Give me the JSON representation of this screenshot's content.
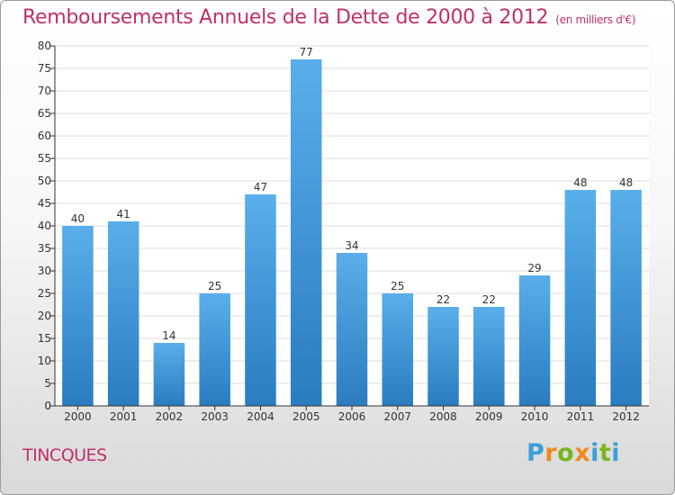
{
  "title": "Remboursements Annuels de la Dette de 2000 à 2012",
  "subtitle": "(en milliers d'€)",
  "commune": "TINCQUES",
  "logo": {
    "letters": [
      "P",
      "r",
      "o",
      "x",
      "i",
      "t",
      "i"
    ],
    "colors": [
      "#3aa0d8",
      "#f08a1c",
      "#7ab51d",
      "#f08a1c",
      "#3aa0d8",
      "#7ab51d",
      "#3aa0d8"
    ]
  },
  "colors": {
    "bar_light": "#5aaeea",
    "bar_dark": "#2a7cbf",
    "title": "#c0306a",
    "axis": "#333333",
    "grid": "#dcdcdc"
  },
  "chart_data": {
    "type": "bar",
    "categories": [
      "2000",
      "2001",
      "2002",
      "2003",
      "2004",
      "2005",
      "2006",
      "2007",
      "2008",
      "2009",
      "2010",
      "2011",
      "2012"
    ],
    "values": [
      40,
      41,
      14,
      25,
      47,
      77,
      34,
      25,
      22,
      22,
      29,
      48,
      48
    ],
    "ylim": [
      0,
      80
    ],
    "yticks": [
      0,
      5,
      10,
      15,
      20,
      25,
      30,
      35,
      40,
      45,
      50,
      55,
      60,
      65,
      70,
      75,
      80
    ],
    "grid": true
  }
}
